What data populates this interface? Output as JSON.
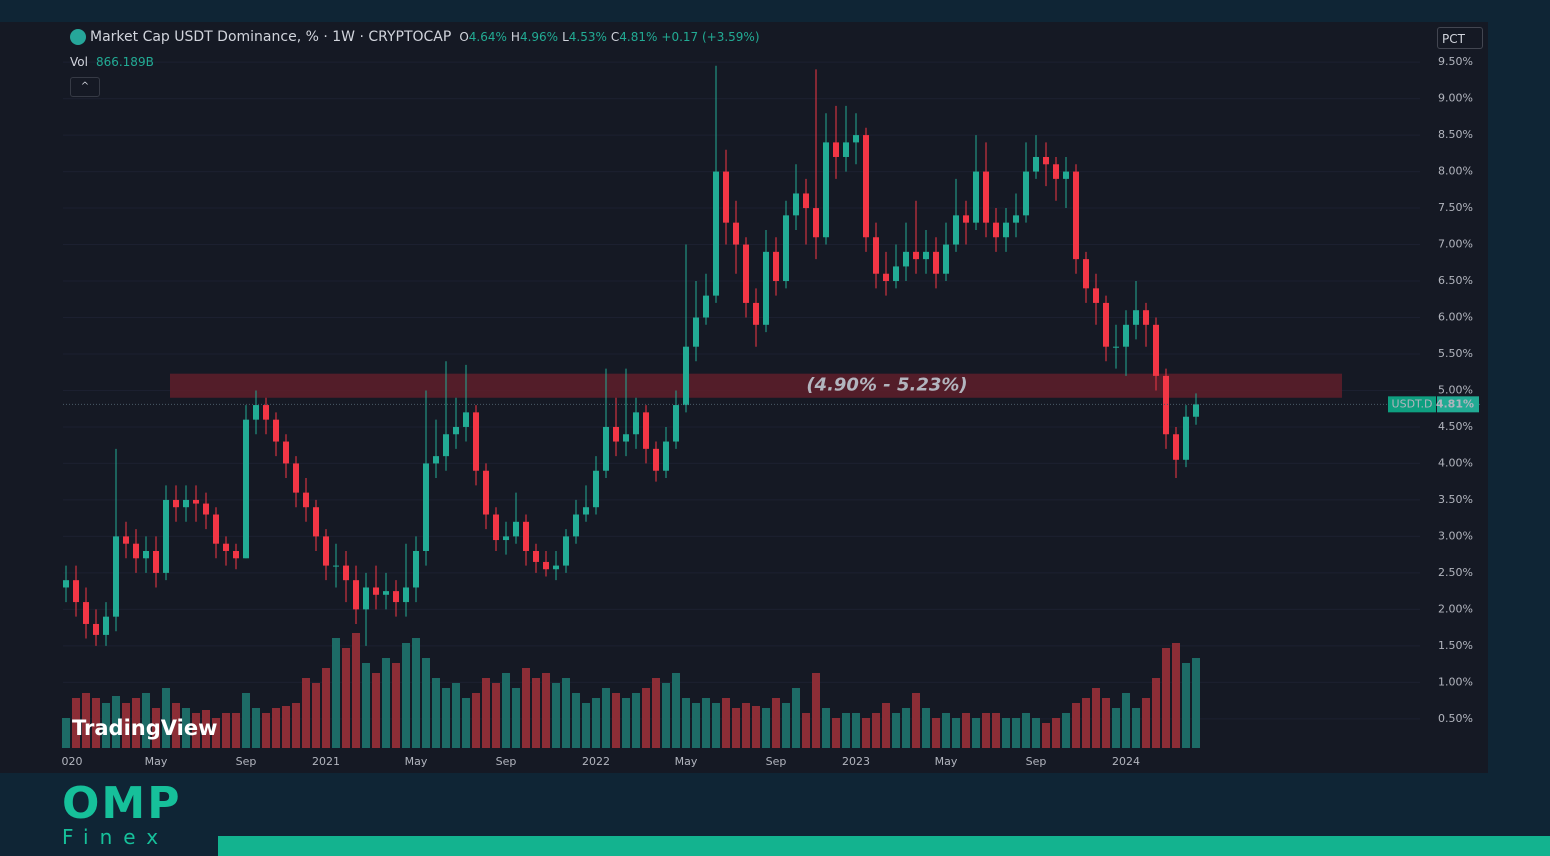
{
  "chart_data": {
    "type": "candlestick",
    "title": "Market Cap USDT Dominance, % · 1W · CRYPTOCAP",
    "legend_values": [
      {
        "key": "O",
        "value": "4.64%"
      },
      {
        "key": "H",
        "value": "4.96%"
      },
      {
        "key": "L",
        "value": "4.53%"
      },
      {
        "key": "C",
        "value": "4.81%"
      }
    ],
    "change": "+0.17 (+3.59%)",
    "volume_label": "Vol",
    "volume_value": "866.189B",
    "scale_mode": "PCT",
    "watermark": "TradingView",
    "symbol": "USDT.D",
    "last": 4.81,
    "last_label": "4.81%",
    "up_color": "#22ab94",
    "down_color": "#f23645",
    "up_volume_color": "#1d6b66",
    "down_volume_color": "#8c2d36",
    "zone": {
      "low": 4.9,
      "high": 5.23,
      "label": "(4.90% - 5.23%)",
      "color": "#5e1f2a"
    },
    "ylim": [
      0.1,
      10.05
    ],
    "yticks": [
      {
        "value": 0.5,
        "label": "0.50%"
      },
      {
        "value": 1,
        "label": "1.00%"
      },
      {
        "value": 1.5,
        "label": "1.50%"
      },
      {
        "value": 2,
        "label": "2.00%"
      },
      {
        "value": 2.5,
        "label": "2.50%"
      },
      {
        "value": 3,
        "label": "3.00%"
      },
      {
        "value": 3.5,
        "label": "3.50%"
      },
      {
        "value": 4,
        "label": "4.00%"
      },
      {
        "value": 4.5,
        "label": "4.50%"
      },
      {
        "value": 5,
        "label": "5.00%"
      },
      {
        "value": 5.5,
        "label": "5.50%"
      },
      {
        "value": 6,
        "label": "6.00%"
      },
      {
        "value": 6.5,
        "label": "6.50%"
      },
      {
        "value": 7,
        "label": "7.00%"
      },
      {
        "value": 7.5,
        "label": "7.50%"
      },
      {
        "value": 8,
        "label": "8.00%"
      },
      {
        "value": 8.5,
        "label": "8.50%"
      },
      {
        "value": 9,
        "label": "9.00%"
      },
      {
        "value": 9.5,
        "label": "9.50%"
      }
    ],
    "categories": [
      "020",
      null,
      null,
      null,
      null,
      null,
      null,
      null,
      null,
      "May",
      null,
      null,
      null,
      null,
      null,
      null,
      null,
      null,
      "Sep",
      null,
      null,
      null,
      null,
      null,
      null,
      null,
      "2021",
      null,
      null,
      null,
      null,
      null,
      null,
      null,
      null,
      "May",
      null,
      null,
      null,
      null,
      null,
      null,
      null,
      null,
      "Sep",
      null,
      null,
      null,
      null,
      null,
      null,
      null,
      null,
      "2022",
      null,
      null,
      null,
      null,
      null,
      null,
      null,
      null,
      "May",
      null,
      null,
      null,
      null,
      null,
      null,
      null,
      null,
      "Sep",
      null,
      null,
      null,
      null,
      null,
      null,
      null,
      "2023",
      null,
      null,
      null,
      null,
      null,
      null,
      null,
      null,
      "May",
      null,
      null,
      null,
      null,
      null,
      null,
      null,
      null,
      "Sep",
      null,
      null,
      null,
      null,
      null,
      null,
      null,
      null,
      "2024",
      null,
      null,
      null,
      null,
      null,
      null,
      null
    ],
    "open": [
      2.3,
      2.4,
      2.1,
      1.8,
      1.65,
      1.9,
      3.0,
      2.9,
      2.7,
      2.8,
      2.5,
      3.5,
      3.4,
      3.5,
      3.45,
      3.3,
      2.9,
      2.8,
      2.7,
      4.6,
      4.8,
      4.6,
      4.3,
      4.0,
      3.6,
      3.4,
      3.0,
      2.6,
      2.6,
      2.4,
      2.0,
      2.3,
      2.2,
      2.25,
      2.1,
      2.3,
      2.8,
      4.0,
      4.1,
      4.4,
      4.5,
      4.7,
      3.9,
      3.3,
      2.95,
      3.0,
      3.2,
      2.8,
      2.65,
      2.55,
      2.6,
      3.0,
      3.3,
      3.4,
      3.9,
      4.5,
      4.3,
      4.4,
      4.7,
      4.2,
      3.9,
      4.3,
      4.8,
      5.6,
      6.0,
      6.3,
      8.0,
      7.3,
      7.0,
      6.2,
      5.9,
      6.9,
      6.5,
      7.4,
      7.7,
      7.5,
      7.1,
      8.4,
      8.2,
      8.4,
      8.5,
      7.1,
      6.6,
      6.5,
      6.7,
      6.9,
      6.8,
      6.9,
      6.6,
      7.0,
      7.4,
      7.3,
      8.0,
      7.3,
      7.1,
      7.3,
      7.4,
      8.0,
      8.2,
      8.1,
      7.9,
      8.0,
      6.8,
      6.4,
      6.2,
      5.6,
      5.6,
      5.9,
      6.1,
      5.9,
      5.2,
      4.4,
      4.05,
      4.64
    ],
    "high": [
      2.6,
      2.6,
      2.3,
      2.0,
      2.1,
      4.2,
      3.2,
      3.1,
      3.0,
      3.0,
      3.7,
      3.7,
      3.7,
      3.7,
      3.6,
      3.4,
      3.0,
      2.9,
      4.8,
      5.0,
      4.9,
      4.7,
      4.4,
      4.1,
      3.8,
      3.5,
      3.1,
      2.9,
      2.8,
      2.6,
      2.5,
      2.6,
      2.5,
      2.4,
      2.9,
      3.0,
      5.0,
      4.6,
      5.4,
      4.9,
      5.35,
      4.8,
      4.0,
      3.4,
      3.2,
      3.6,
      3.3,
      2.9,
      2.8,
      2.8,
      3.1,
      3.5,
      3.7,
      4.1,
      5.3,
      4.9,
      5.3,
      4.9,
      4.8,
      4.3,
      4.5,
      5.0,
      7.0,
      6.5,
      6.6,
      9.45,
      8.3,
      7.6,
      7.1,
      6.4,
      7.2,
      7.1,
      7.6,
      8.1,
      7.9,
      9.4,
      8.8,
      8.9,
      8.9,
      8.8,
      8.6,
      7.3,
      6.9,
      7.0,
      7.3,
      7.6,
      7.2,
      7.1,
      7.3,
      7.9,
      7.6,
      8.5,
      8.4,
      7.5,
      7.5,
      7.7,
      8.4,
      8.5,
      8.4,
      8.2,
      8.2,
      8.1,
      6.9,
      6.6,
      6.3,
      5.9,
      6.1,
      6.5,
      6.2,
      6.0,
      5.3,
      4.5,
      4.8,
      4.96
    ],
    "low": [
      2.1,
      1.9,
      1.6,
      1.5,
      1.5,
      1.7,
      2.7,
      2.5,
      2.5,
      2.3,
      2.4,
      3.2,
      3.2,
      3.2,
      3.1,
      2.7,
      2.6,
      2.55,
      2.7,
      4.4,
      4.4,
      4.1,
      3.8,
      3.4,
      3.2,
      2.8,
      2.4,
      2.3,
      2.1,
      1.8,
      1.5,
      2.0,
      2.0,
      1.9,
      1.9,
      2.1,
      2.6,
      3.8,
      3.9,
      4.2,
      4.3,
      3.7,
      3.1,
      2.8,
      2.75,
      2.9,
      2.6,
      2.5,
      2.45,
      2.4,
      2.5,
      2.9,
      3.2,
      3.3,
      3.8,
      4.1,
      4.1,
      4.2,
      4.0,
      3.75,
      3.8,
      4.2,
      4.7,
      5.4,
      5.9,
      6.2,
      7.0,
      6.6,
      6.0,
      5.6,
      5.8,
      6.3,
      6.4,
      7.2,
      7.0,
      6.8,
      7.0,
      7.9,
      8.0,
      8.1,
      6.9,
      6.4,
      6.3,
      6.4,
      6.5,
      6.6,
      6.6,
      6.4,
      6.5,
      6.9,
      7.0,
      7.2,
      7.1,
      6.9,
      6.9,
      7.1,
      7.3,
      7.9,
      7.8,
      7.6,
      7.5,
      6.6,
      6.2,
      5.9,
      5.4,
      5.3,
      5.2,
      5.7,
      5.6,
      5.0,
      4.2,
      3.8,
      3.95,
      4.53
    ],
    "close": [
      2.4,
      2.1,
      1.8,
      1.65,
      1.9,
      3.0,
      2.9,
      2.7,
      2.8,
      2.5,
      3.5,
      3.4,
      3.5,
      3.45,
      3.3,
      2.9,
      2.8,
      2.7,
      4.6,
      4.8,
      4.6,
      4.3,
      4.0,
      3.6,
      3.4,
      3.0,
      2.6,
      2.6,
      2.4,
      2.0,
      2.3,
      2.2,
      2.25,
      2.1,
      2.3,
      2.8,
      4.0,
      4.1,
      4.4,
      4.5,
      4.7,
      3.9,
      3.3,
      2.95,
      3.0,
      3.2,
      2.8,
      2.65,
      2.55,
      2.6,
      3.0,
      3.3,
      3.4,
      3.9,
      4.5,
      4.3,
      4.4,
      4.7,
      4.2,
      3.9,
      4.3,
      4.8,
      5.6,
      6.0,
      6.3,
      8.0,
      7.3,
      7.0,
      6.2,
      5.9,
      6.9,
      6.5,
      7.4,
      7.7,
      7.5,
      7.1,
      8.4,
      8.2,
      8.4,
      8.5,
      7.1,
      6.6,
      6.5,
      6.7,
      6.9,
      6.8,
      6.9,
      6.6,
      7.0,
      7.4,
      7.3,
      8.0,
      7.3,
      7.1,
      7.3,
      7.4,
      8.0,
      8.2,
      8.1,
      7.9,
      8.0,
      6.8,
      6.4,
      6.2,
      5.6,
      5.6,
      5.9,
      6.1,
      5.9,
      5.2,
      4.4,
      4.05,
      4.64,
      4.81
    ],
    "volume": [
      300,
      500,
      550,
      500,
      450,
      520,
      450,
      500,
      550,
      400,
      600,
      450,
      400,
      350,
      380,
      300,
      350,
      350,
      550,
      400,
      350,
      400,
      420,
      450,
      700,
      650,
      800,
      1100,
      1000,
      1150,
      850,
      750,
      900,
      850,
      1050,
      1100,
      900,
      700,
      600,
      650,
      500,
      550,
      700,
      650,
      750,
      600,
      800,
      700,
      750,
      650,
      700,
      550,
      450,
      500,
      600,
      550,
      500,
      550,
      600,
      700,
      650,
      750,
      500,
      450,
      500,
      450,
      500,
      400,
      450,
      420,
      400,
      500,
      450,
      600,
      350,
      750,
      400,
      300,
      350,
      350,
      300,
      350,
      450,
      350,
      400,
      550,
      400,
      300,
      350,
      300,
      350,
      300,
      350,
      350,
      300,
      300,
      350,
      300,
      250,
      300,
      350,
      450,
      500,
      600,
      500,
      400,
      550,
      400,
      500,
      700,
      1000,
      1050,
      850,
      900
    ]
  },
  "brand": {
    "name": "OMP",
    "sub": "Finex"
  }
}
